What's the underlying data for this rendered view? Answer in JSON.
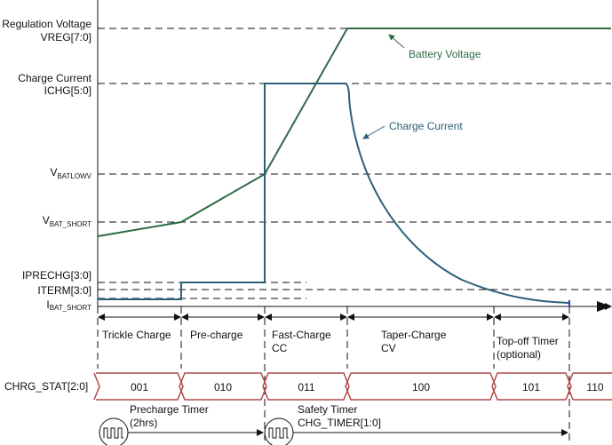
{
  "levels": {
    "vreg_line1": "Regulation Voltage",
    "vreg_line2": "VREG[7:0]",
    "ichg_line1": "Charge Current",
    "ichg_line2": "ICHG[5:0]",
    "vbatlowv_main": "V",
    "vbatlowv_sub": "BATLOWV",
    "vbat_short_main": "V",
    "vbat_short_sub": "BAT_SHORT",
    "iprechg": "IPRECHG[3:0]",
    "iterm": "ITERM[3:0]",
    "ibat_short_main": "I",
    "ibat_short_sub": "BAT_SHORT"
  },
  "curves": {
    "voltage_label": "Battery Voltage",
    "current_label": "Charge Current",
    "voltage_color": "#2e6b45",
    "current_color": "#2d5f7a"
  },
  "phases": [
    {
      "line1": "Trickle Charge",
      "line2": ""
    },
    {
      "line1": "Pre-charge",
      "line2": ""
    },
    {
      "line1": "Fast-Charge",
      "line2": "CC"
    },
    {
      "line1": "Taper-Charge",
      "line2": "CV"
    },
    {
      "line1": "Top-off Timer",
      "line2": "(optional)"
    }
  ],
  "status": {
    "label": "CHRG_STAT[2:0]",
    "values": [
      "001",
      "010",
      "011",
      "100",
      "101",
      "110"
    ],
    "bus_color": "#b04a4a"
  },
  "timers": {
    "precharge_line1": "Precharge Timer",
    "precharge_line2": "(2hrs)",
    "safety_line1": "Safety Timer",
    "safety_line2": "CHG_TIMER[1:0]",
    "icon": "clock-pulse-icon"
  }
}
